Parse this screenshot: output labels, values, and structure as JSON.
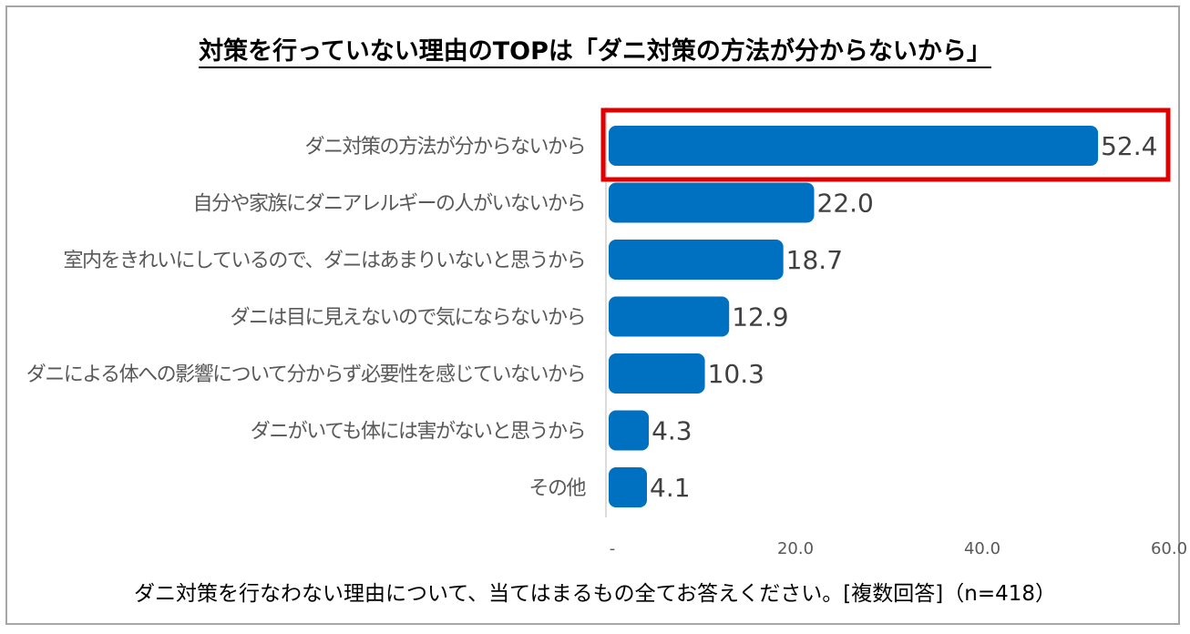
{
  "title": "対策を行っていない理由のTOPは「ダニ対策の方法が分からないから」",
  "caption": "ダニ対策を行なわない理由について、当てはまるもの全てお答えください。[複数回答]（n=418）",
  "colors": {
    "bar": "#0070c0",
    "highlight": "#e00000"
  },
  "chart_data": {
    "type": "bar",
    "orientation": "horizontal",
    "title": "対策を行っていない理由のTOPは「ダニ対策の方法が分からないから」",
    "categories": [
      "ダニ対策の方法が分からないから",
      "自分や家族にダニアレルギーの人がいないから",
      "室内をきれいにしているので、ダニはあまりいないと思うから",
      "ダニは目に見えないので気にならないから",
      "ダニによる体への影響について分からず必要性を感じていないから",
      "ダニがいても体には害がないと思うから",
      "その他"
    ],
    "values": [
      52.4,
      22.0,
      18.7,
      12.9,
      10.3,
      4.3,
      4.1
    ],
    "value_labels": [
      "52.4",
      "22.0",
      "18.7",
      "12.9",
      "10.3",
      "4.3",
      "4.1"
    ],
    "xlim": [
      0,
      60
    ],
    "xticks": [
      0,
      20,
      40,
      60
    ],
    "xtick_labels": [
      "-",
      "20.0",
      "40.0",
      "60.0"
    ],
    "highlighted_index": 0,
    "grid": false,
    "xlabel": "",
    "ylabel": ""
  }
}
